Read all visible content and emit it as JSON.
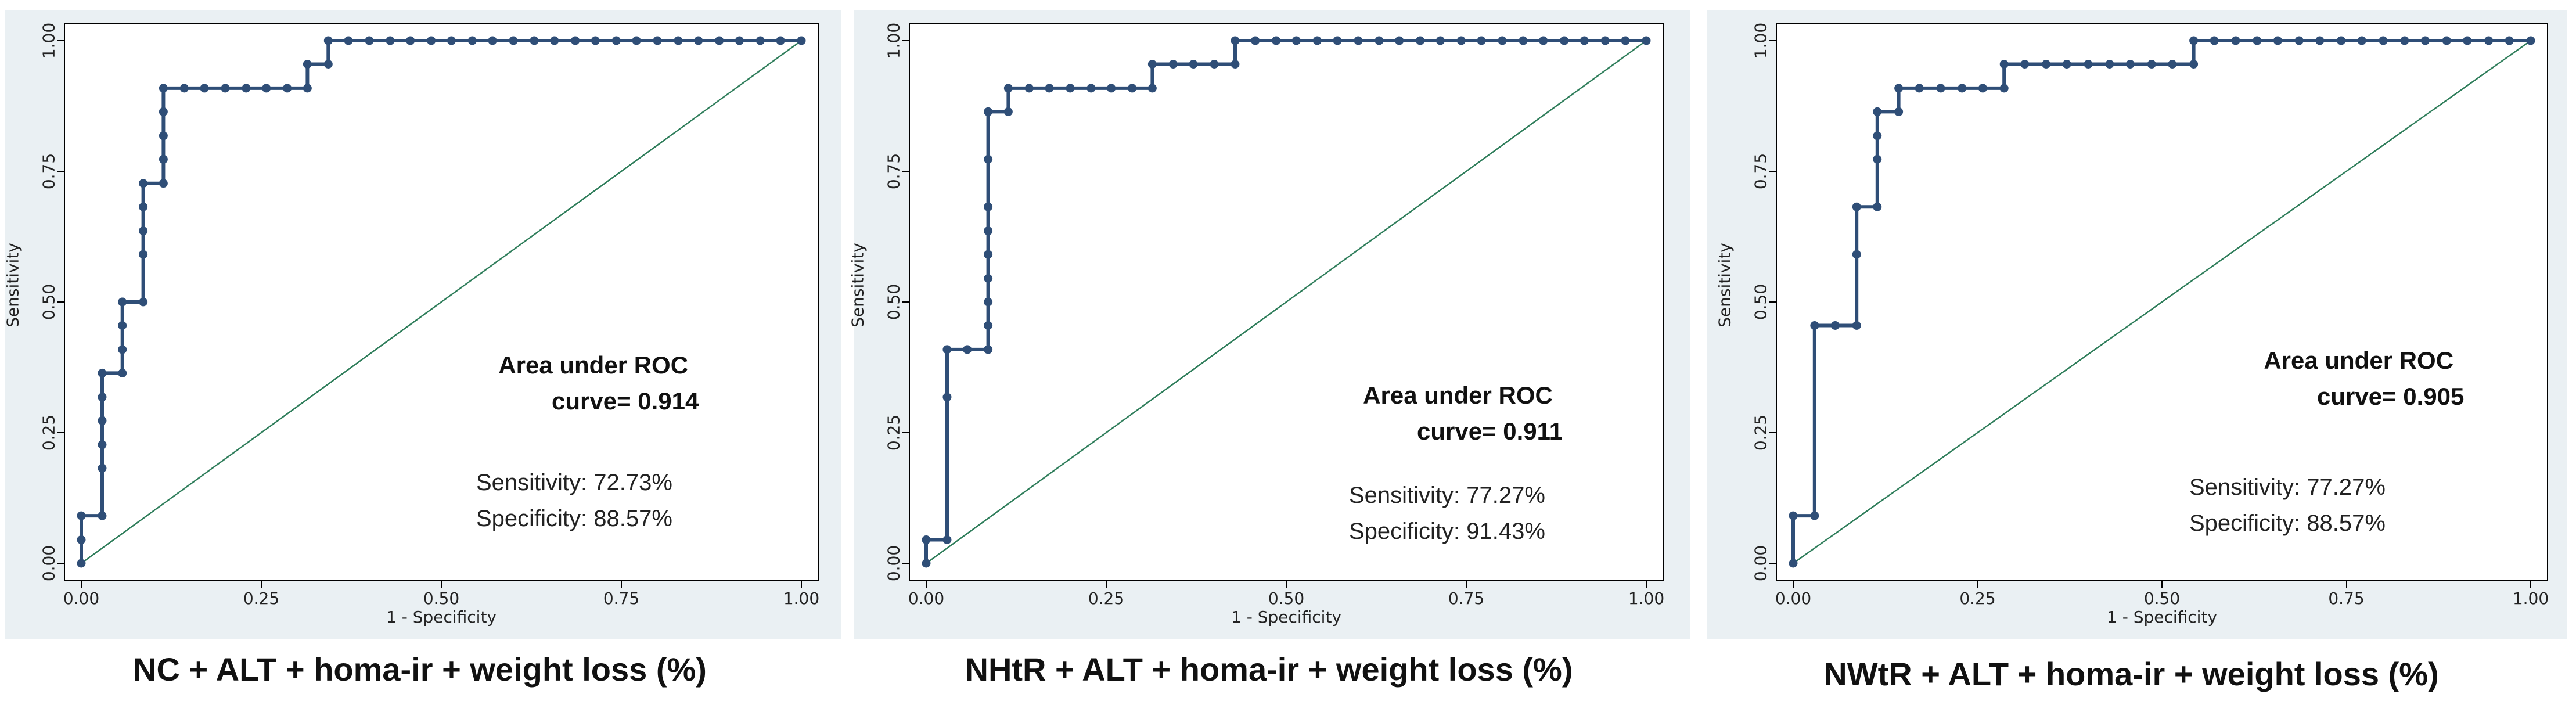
{
  "chart_data": [
    {
      "type": "line",
      "title": "NC + ALT + homa-ir + weight loss (%)",
      "xlabel": "1 - Specificity",
      "ylabel": "Sensitivity",
      "xlim": [
        0,
        1
      ],
      "ylim": [
        0,
        1
      ],
      "xticks": [
        "0.00",
        "0.25",
        "0.50",
        "0.75",
        "1.00"
      ],
      "yticks": [
        "0.00",
        "0.25",
        "0.50",
        "0.75",
        "1.00"
      ],
      "series": [
        {
          "name": "ROC curve",
          "x": [
            0.0,
            0.0,
            0.0,
            0.029,
            0.029,
            0.029,
            0.029,
            0.029,
            0.029,
            0.057,
            0.057,
            0.057,
            0.057,
            0.057,
            0.086,
            0.086,
            0.086,
            0.086,
            0.086,
            0.114,
            0.114,
            0.114,
            0.114,
            0.114,
            0.143,
            0.171,
            0.2,
            0.229,
            0.257,
            0.286,
            0.314,
            0.314,
            0.343,
            0.343,
            0.371,
            0.4,
            0.429,
            0.457,
            0.486,
            0.514,
            0.543,
            0.571,
            0.6,
            0.629,
            0.657,
            0.686,
            0.714,
            0.743,
            0.771,
            0.8,
            0.829,
            0.857,
            0.886,
            0.914,
            0.943,
            0.971,
            1.0
          ],
          "y": [
            0.0,
            0.045,
            0.091,
            0.091,
            0.182,
            0.227,
            0.273,
            0.318,
            0.364,
            0.364,
            0.409,
            0.455,
            0.5,
            0.5,
            0.5,
            0.591,
            0.636,
            0.682,
            0.727,
            0.727,
            0.773,
            0.818,
            0.864,
            0.909,
            0.909,
            0.909,
            0.909,
            0.909,
            0.909,
            0.909,
            0.909,
            0.955,
            0.955,
            1.0,
            1.0,
            1.0,
            1.0,
            1.0,
            1.0,
            1.0,
            1.0,
            1.0,
            1.0,
            1.0,
            1.0,
            1.0,
            1.0,
            1.0,
            1.0,
            1.0,
            1.0,
            1.0,
            1.0,
            1.0,
            1.0,
            1.0,
            1.0
          ]
        },
        {
          "name": "Reference line",
          "x": [
            0,
            1
          ],
          "y": [
            0,
            1
          ]
        }
      ],
      "auc_label": "Area under ROC",
      "auc_value": "curve= 0.914",
      "sensitivity": "Sensitivity: 72.73%",
      "specificity": "Specificity: 88.57%"
    },
    {
      "type": "line",
      "title": "NHtR + ALT + homa-ir + weight loss (%)",
      "xlabel": "1 - Specificity",
      "ylabel": "Sensitivity",
      "xlim": [
        0,
        1
      ],
      "ylim": [
        0,
        1
      ],
      "xticks": [
        "0.00",
        "0.25",
        "0.50",
        "0.75",
        "1.00"
      ],
      "yticks": [
        "0.00",
        "0.25",
        "0.50",
        "0.75",
        "1.00"
      ],
      "series": [
        {
          "name": "ROC curve",
          "x": [
            0.0,
            0.0,
            0.029,
            0.029,
            0.029,
            0.057,
            0.086,
            0.086,
            0.086,
            0.086,
            0.086,
            0.086,
            0.086,
            0.086,
            0.086,
            0.114,
            0.114,
            0.143,
            0.171,
            0.2,
            0.229,
            0.257,
            0.286,
            0.314,
            0.314,
            0.343,
            0.371,
            0.4,
            0.429,
            0.429,
            0.457,
            0.486,
            0.514,
            0.543,
            0.571,
            0.6,
            0.629,
            0.657,
            0.686,
            0.714,
            0.743,
            0.771,
            0.8,
            0.829,
            0.857,
            0.886,
            0.914,
            0.943,
            0.971,
            1.0
          ],
          "y": [
            0.0,
            0.045,
            0.045,
            0.318,
            0.409,
            0.409,
            0.409,
            0.455,
            0.5,
            0.545,
            0.591,
            0.636,
            0.682,
            0.773,
            0.864,
            0.864,
            0.909,
            0.909,
            0.909,
            0.909,
            0.909,
            0.909,
            0.909,
            0.909,
            0.955,
            0.955,
            0.955,
            0.955,
            0.955,
            1.0,
            1.0,
            1.0,
            1.0,
            1.0,
            1.0,
            1.0,
            1.0,
            1.0,
            1.0,
            1.0,
            1.0,
            1.0,
            1.0,
            1.0,
            1.0,
            1.0,
            1.0,
            1.0,
            1.0,
            1.0
          ]
        },
        {
          "name": "Reference line",
          "x": [
            0,
            1
          ],
          "y": [
            0,
            1
          ]
        }
      ],
      "auc_label": "Area under ROC",
      "auc_value": "curve= 0.911",
      "sensitivity": "Sensitivity: 77.27%",
      "specificity": "Specificity: 91.43%"
    },
    {
      "type": "line",
      "title": "NWtR + ALT + homa-ir + weight loss (%)",
      "xlabel": "1 - Specificity",
      "ylabel": "Sensitivity",
      "xlim": [
        0,
        1
      ],
      "ylim": [
        0,
        1
      ],
      "xticks": [
        "0.00",
        "0.25",
        "0.50",
        "0.75",
        "1.00"
      ],
      "yticks": [
        "0.00",
        "0.25",
        "0.50",
        "0.75",
        "1.00"
      ],
      "series": [
        {
          "name": "ROC curve",
          "x": [
            0.0,
            0.0,
            0.029,
            0.029,
            0.057,
            0.086,
            0.086,
            0.086,
            0.114,
            0.114,
            0.114,
            0.114,
            0.143,
            0.143,
            0.171,
            0.2,
            0.229,
            0.257,
            0.286,
            0.286,
            0.314,
            0.343,
            0.371,
            0.4,
            0.429,
            0.457,
            0.486,
            0.514,
            0.543,
            0.543,
            0.571,
            0.6,
            0.629,
            0.657,
            0.686,
            0.714,
            0.743,
            0.771,
            0.8,
            0.829,
            0.857,
            0.886,
            0.914,
            0.943,
            0.971,
            1.0
          ],
          "y": [
            0.0,
            0.091,
            0.091,
            0.455,
            0.455,
            0.455,
            0.591,
            0.682,
            0.682,
            0.773,
            0.818,
            0.864,
            0.864,
            0.909,
            0.909,
            0.909,
            0.909,
            0.909,
            0.909,
            0.955,
            0.955,
            0.955,
            0.955,
            0.955,
            0.955,
            0.955,
            0.955,
            0.955,
            0.955,
            1.0,
            1.0,
            1.0,
            1.0,
            1.0,
            1.0,
            1.0,
            1.0,
            1.0,
            1.0,
            1.0,
            1.0,
            1.0,
            1.0,
            1.0,
            1.0,
            1.0
          ]
        },
        {
          "name": "Reference line",
          "x": [
            0,
            1
          ],
          "y": [
            0,
            1
          ]
        }
      ],
      "auc_label": "Area under ROC",
      "auc_value": "curve= 0.905",
      "sensitivity": "Sensitivity: 77.27%",
      "specificity": "Specificity: 88.57%"
    }
  ],
  "colors": {
    "curve": "#2f4e77",
    "reference": "#2e7d5a",
    "panel_bg": "#eaf0f3"
  }
}
